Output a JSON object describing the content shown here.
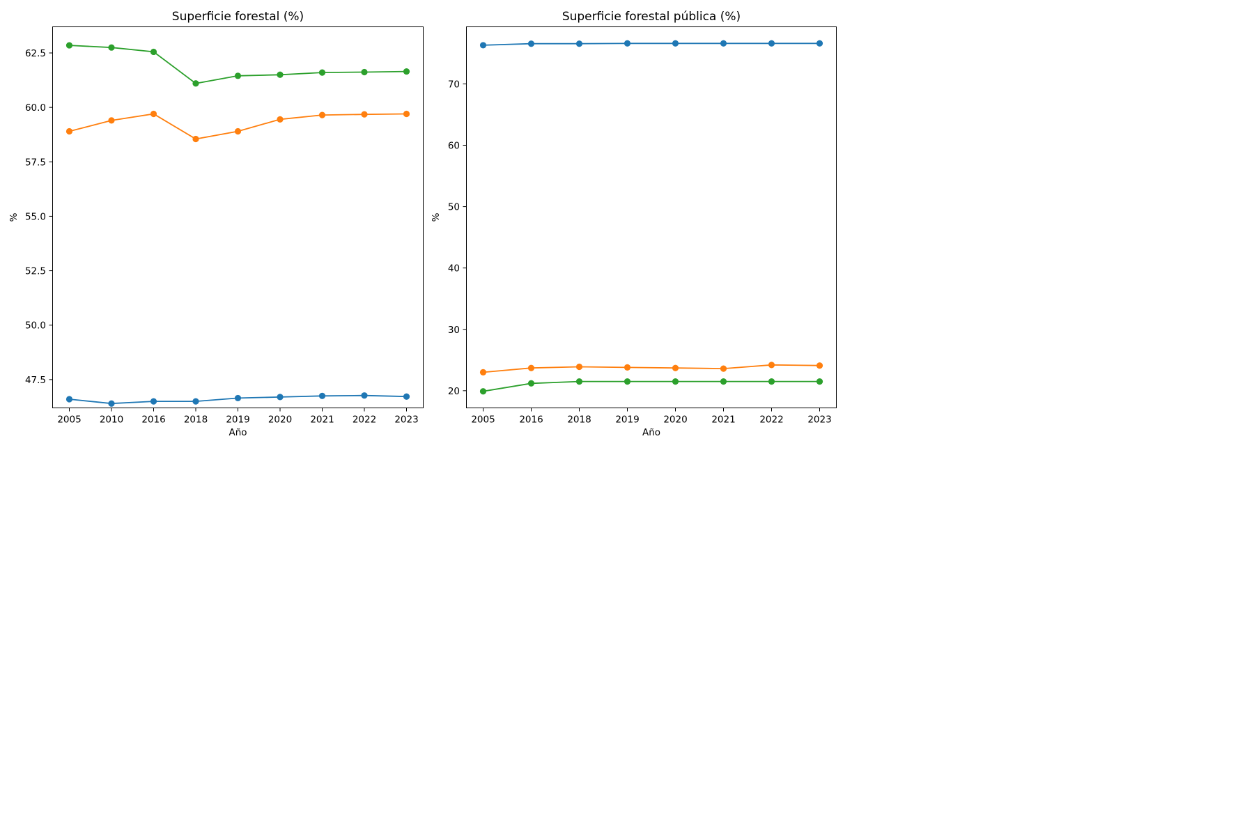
{
  "chart_data": [
    {
      "type": "line",
      "title": "Superficie forestal (%)",
      "xlabel": "Año",
      "ylabel": "%",
      "categories": [
        "2005",
        "2010",
        "2016",
        "2018",
        "2019",
        "2020",
        "2021",
        "2022",
        "2023"
      ],
      "ylim": [
        46.2,
        63.7
      ],
      "yticks": [
        "47.5",
        "50.0",
        "52.5",
        "55.0",
        "57.5",
        "60.0",
        "62.5"
      ],
      "grid": false,
      "series": [
        {
          "color": "#1f77b4",
          "values": [
            46.6,
            46.4,
            46.5,
            46.5,
            46.65,
            46.7,
            46.75,
            46.77,
            46.72
          ]
        },
        {
          "color": "#ff7f0e",
          "values": [
            58.9,
            59.4,
            59.7,
            58.55,
            58.9,
            59.45,
            59.65,
            59.68,
            59.7
          ]
        },
        {
          "color": "#2ca02c",
          "values": [
            62.85,
            62.75,
            62.55,
            61.1,
            61.45,
            61.5,
            61.6,
            61.62,
            61.65
          ]
        }
      ]
    },
    {
      "type": "line",
      "title": "Superficie forestal pública (%)",
      "xlabel": "Año",
      "ylabel": "%",
      "categories": [
        "2005",
        "2016",
        "2018",
        "2019",
        "2020",
        "2021",
        "2022",
        "2023"
      ],
      "ylim": [
        17.2,
        79.3
      ],
      "yticks": [
        "20",
        "30",
        "40",
        "50",
        "60",
        "70"
      ],
      "grid": false,
      "series": [
        {
          "color": "#1f77b4",
          "values": [
            76.3,
            76.55,
            76.55,
            76.6,
            76.6,
            76.6,
            76.6,
            76.6
          ]
        },
        {
          "color": "#ff7f0e",
          "values": [
            23.0,
            23.7,
            23.9,
            23.8,
            23.7,
            23.6,
            24.2,
            24.1
          ]
        },
        {
          "color": "#2ca02c",
          "values": [
            19.9,
            21.2,
            21.5,
            21.5,
            21.5,
            21.5,
            21.5,
            21.5
          ]
        }
      ]
    }
  ]
}
